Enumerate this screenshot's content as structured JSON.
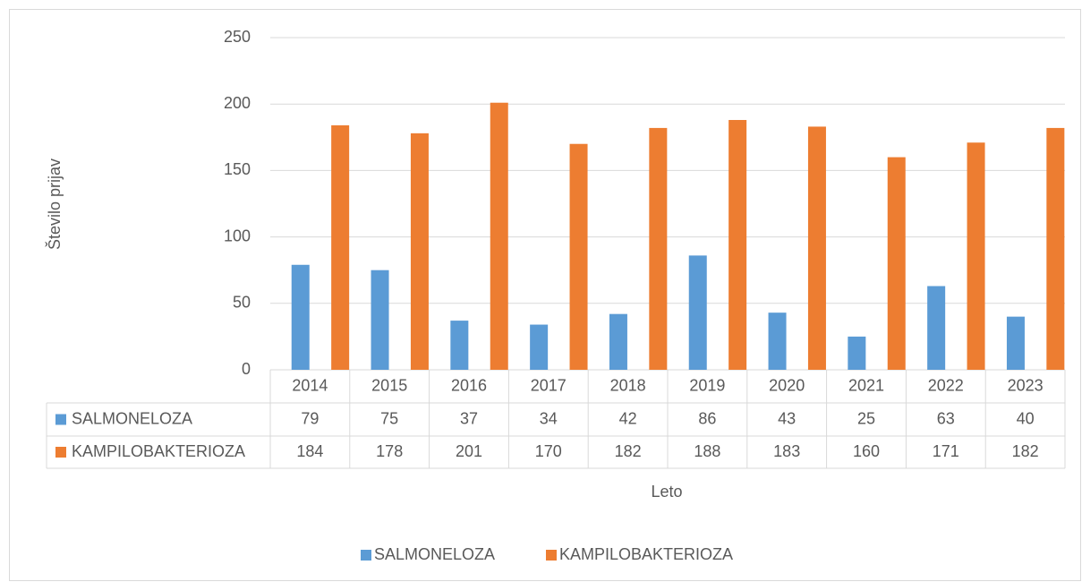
{
  "chart_data": {
    "type": "bar",
    "y_label": "Število prijav",
    "x_label": "Leto",
    "categories": [
      "2014",
      "2015",
      "2016",
      "2017",
      "2018",
      "2019",
      "2020",
      "2021",
      "2022",
      "2023"
    ],
    "series": [
      {
        "name": "SALMONELOZA",
        "color": "#5b9bd5",
        "values": [
          79,
          75,
          37,
          34,
          42,
          86,
          43,
          25,
          63,
          40
        ]
      },
      {
        "name": "KAMPILOBAKTERIOZA",
        "color": "#ed7d31",
        "values": [
          184,
          178,
          201,
          170,
          182,
          188,
          183,
          160,
          171,
          182
        ]
      }
    ],
    "ylim": [
      0,
      250
    ],
    "yticks": [
      0,
      50,
      100,
      150,
      200,
      250
    ],
    "grid": true,
    "legend": "bottom"
  }
}
